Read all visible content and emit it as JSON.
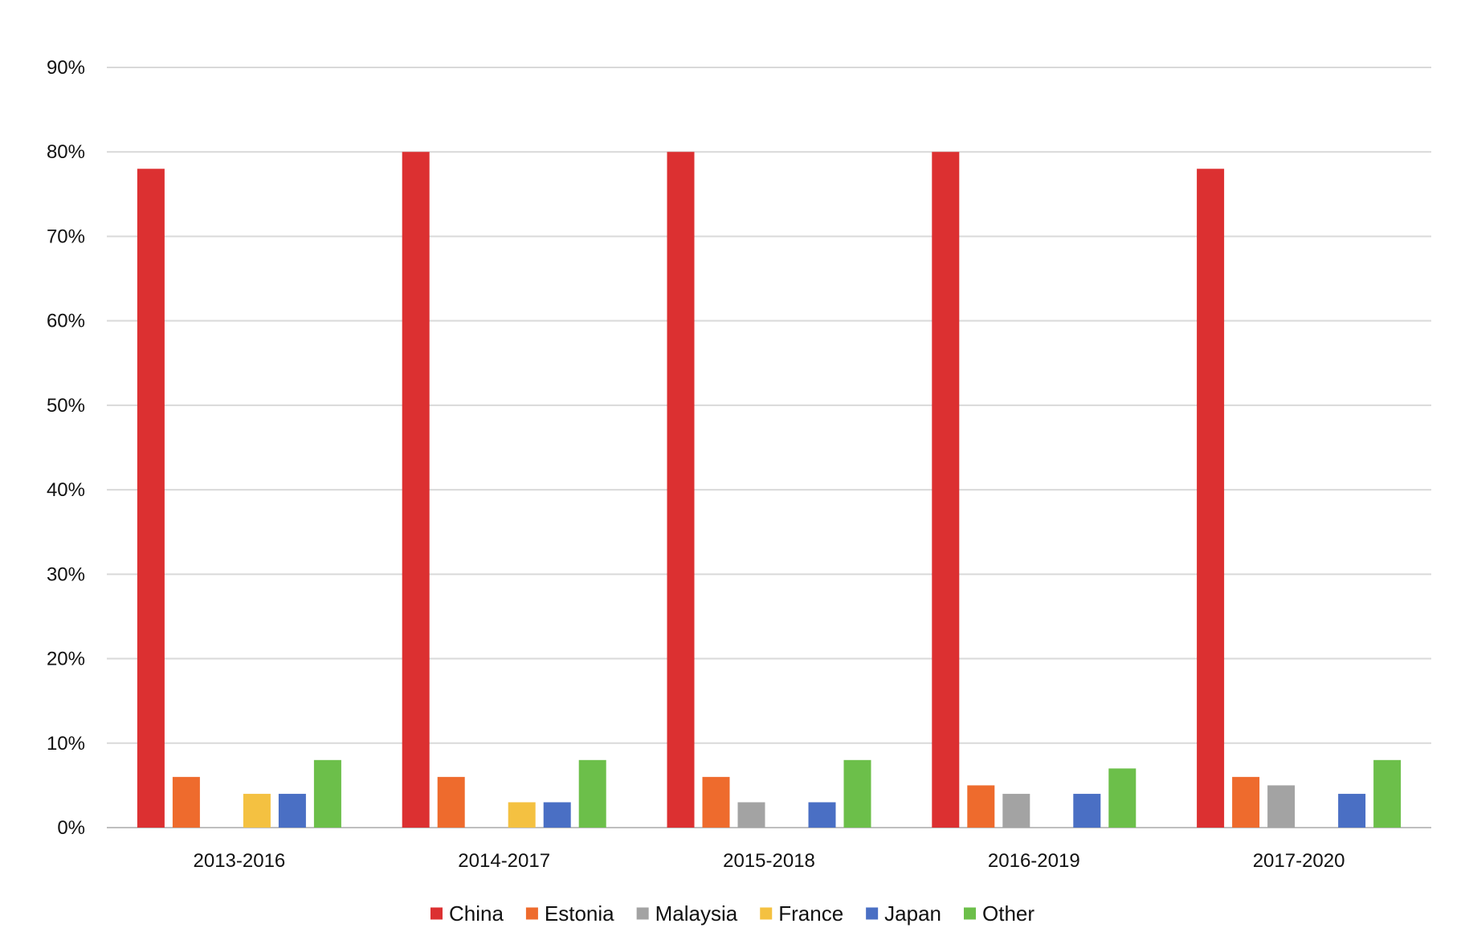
{
  "chart_data": {
    "type": "bar",
    "title": "",
    "xlabel": "",
    "ylabel": "",
    "categories": [
      "2013-2016",
      "2014-2017",
      "2015-2018",
      "2016-2019",
      "2017-2020"
    ],
    "ylim": [
      0,
      90
    ],
    "yticks": [
      0,
      10,
      20,
      30,
      40,
      50,
      60,
      70,
      80,
      90
    ],
    "ytick_labels": [
      "0%",
      "10%",
      "20%",
      "30%",
      "40%",
      "50%",
      "60%",
      "70%",
      "80%",
      "90%"
    ],
    "grid": true,
    "legend_position": "bottom",
    "series": [
      {
        "name": "China",
        "color": "#DC3031",
        "values": [
          78,
          80,
          80,
          80,
          78
        ]
      },
      {
        "name": "Estonia",
        "color": "#EE6B2D",
        "values": [
          6,
          6,
          6,
          5,
          6
        ]
      },
      {
        "name": "Malaysia",
        "color": "#A3A3A3",
        "values": [
          0,
          0,
          3,
          4,
          5
        ]
      },
      {
        "name": "France",
        "color": "#F4C141",
        "values": [
          4,
          3,
          0,
          0,
          0
        ]
      },
      {
        "name": "Japan",
        "color": "#4A6FC4",
        "values": [
          4,
          3,
          3,
          4,
          4
        ]
      },
      {
        "name": "Other",
        "color": "#6CBF4A",
        "values": [
          8,
          8,
          8,
          7,
          8
        ]
      }
    ]
  }
}
